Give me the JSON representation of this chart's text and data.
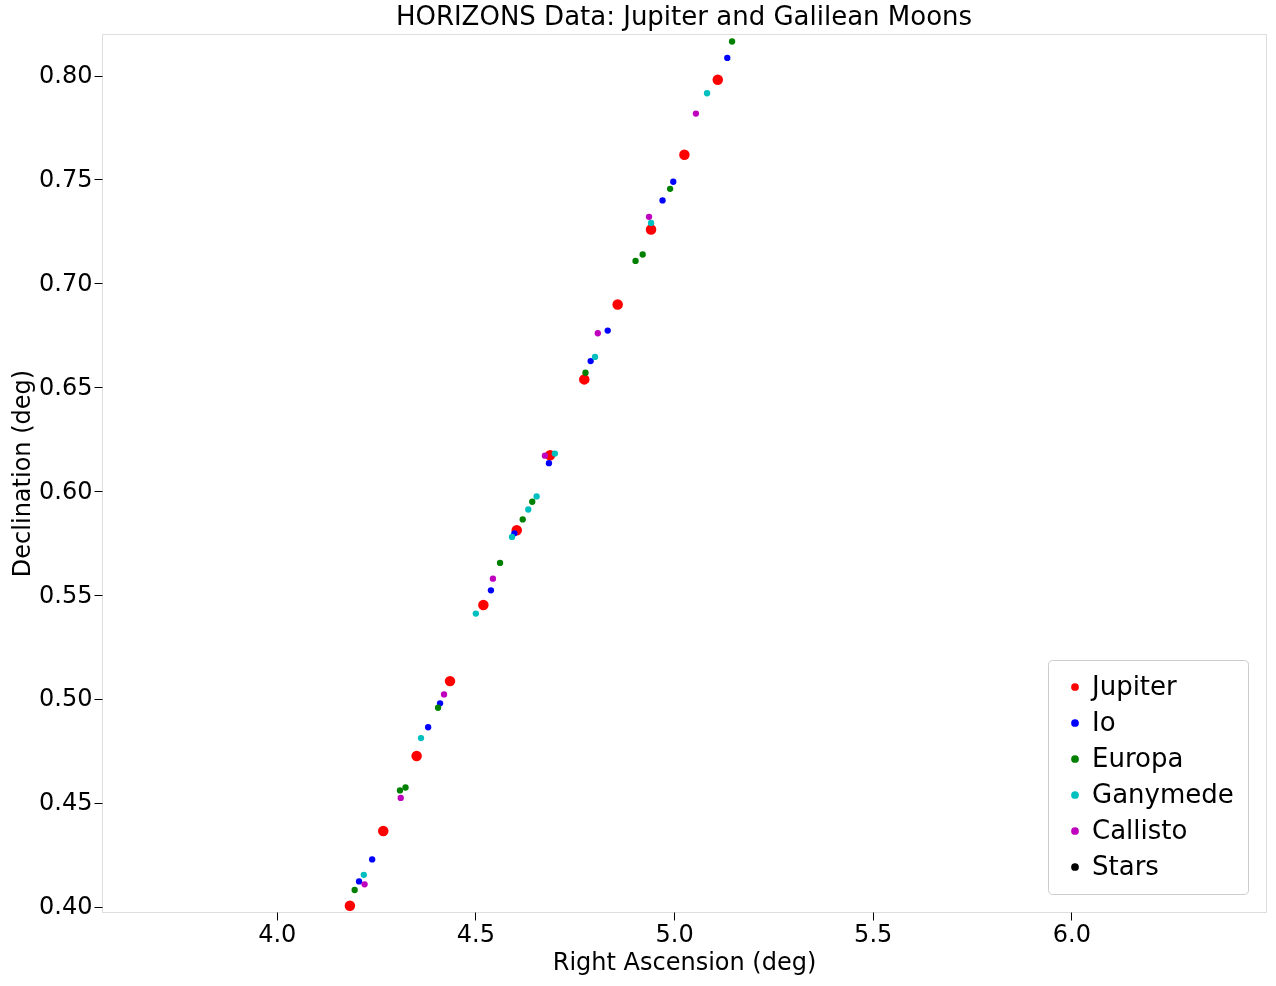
{
  "chart_data": {
    "type": "scatter",
    "title": "HORIZONS Data: Jupiter and Galilean Moons",
    "xlabel": "Right Ascension (deg)",
    "ylabel": "Declination (deg)",
    "xlim": [
      3.56,
      6.49
    ],
    "ylim": [
      0.3975,
      0.82
    ],
    "xticks": [
      {
        "value": 4,
        "label": "4.0"
      },
      4.5,
      {
        "value": 5,
        "label": "5.0"
      },
      5.5,
      {
        "value": 6,
        "label": "6.0"
      }
    ],
    "yticks": [
      {
        "value": 0.4,
        "label": "0.40"
      },
      0.45,
      {
        "value": 0.5,
        "label": "0.50"
      },
      0.55,
      {
        "value": 0.6,
        "label": "0.60"
      },
      0.65,
      {
        "value": 0.7,
        "label": "0.70"
      },
      0.75,
      {
        "value": 0.8,
        "label": "0.80"
      }
    ],
    "grid": false,
    "legend": "bottom right",
    "marker": "circle",
    "series": [
      {
        "name": "Jupiter",
        "color": "#ff0000",
        "x": [
          4.184,
          4.268,
          4.352,
          4.436,
          4.52,
          4.604,
          4.688,
          4.774,
          4.858,
          4.942,
          5.026,
          5.11
        ],
        "values": [
          0.4005,
          0.4365,
          0.4726,
          0.5086,
          0.5452,
          0.5812,
          0.6173,
          0.6538,
          0.6898,
          0.7259,
          0.7619,
          0.798
        ]
      },
      {
        "name": "Io",
        "color": "#0000ff",
        "x": [
          4.207,
          4.24,
          4.381,
          4.411,
          4.539,
          4.598,
          4.685,
          4.79,
          4.833,
          4.971,
          4.998,
          5.134
        ],
        "values": [
          0.4122,
          0.4228,
          0.4864,
          0.4979,
          0.5523,
          0.5797,
          0.6135,
          0.6626,
          0.6773,
          0.7399,
          0.7489,
          0.8085
        ]
      },
      {
        "name": "Europa",
        "color": "#008000",
        "x": [
          4.196,
          4.31,
          4.324,
          4.406,
          4.562,
          4.619,
          4.643,
          4.777,
          4.903,
          4.921,
          4.99,
          5.146
        ],
        "values": [
          0.4081,
          0.456,
          0.4574,
          0.4958,
          0.5655,
          0.5864,
          0.5949,
          0.657,
          0.7108,
          0.7139,
          0.7455,
          0.8164
        ]
      },
      {
        "name": "Ganymede",
        "color": "#00bfbf",
        "x": [
          4.219,
          4.363,
          4.501,
          4.592,
          4.633,
          4.654,
          4.7,
          4.801,
          4.942,
          5.083
        ],
        "values": [
          0.4154,
          0.4812,
          0.5411,
          0.578,
          0.5912,
          0.5975,
          0.6181,
          0.6646,
          0.7291,
          0.7915
        ]
      },
      {
        "name": "Callisto",
        "color": "#bf00bf",
        "x": [
          4.221,
          4.312,
          4.421,
          4.544,
          4.675,
          4.808,
          4.937,
          5.055
        ],
        "values": [
          0.4108,
          0.4524,
          0.5022,
          0.5579,
          0.6171,
          0.676,
          0.732,
          0.7817
        ]
      },
      {
        "name": "Stars",
        "color": "#000000"
      }
    ]
  }
}
